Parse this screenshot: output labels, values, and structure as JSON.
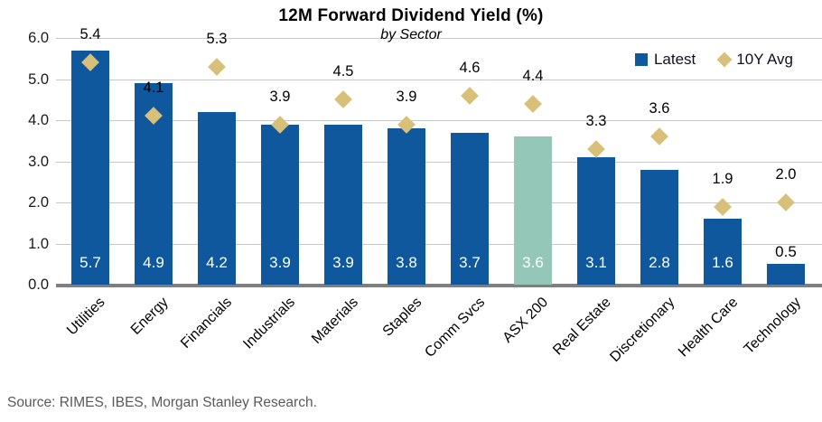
{
  "title": "12M Forward Dividend Yield (%)",
  "subtitle": "by Sector",
  "legend": {
    "latest": "Latest",
    "avg": "10Y Avg"
  },
  "source": "Source: RIMES, IBES, Morgan Stanley Research.",
  "colors": {
    "bar": "#10589E",
    "highlight_bar": "#95C7B8",
    "diamond": "#D8C078",
    "gridline": "#C8C8C8",
    "baseline": "#7F7F7F"
  },
  "chart_data": {
    "type": "bar",
    "title": "12M Forward Dividend Yield (%)",
    "subtitle": "by Sector",
    "categories": [
      "Utilities",
      "Energy",
      "Financials",
      "Industrials",
      "Materials",
      "Staples",
      "Comm Svcs",
      "ASX 200",
      "Real Estate",
      "Discretionary",
      "Health Care",
      "Technology"
    ],
    "series": [
      {
        "name": "Latest",
        "type": "bar",
        "values": [
          5.7,
          4.9,
          4.2,
          3.9,
          3.9,
          3.8,
          3.7,
          3.6,
          3.1,
          2.8,
          1.6,
          0.5
        ]
      },
      {
        "name": "10Y Avg",
        "type": "scatter-diamond",
        "values": [
          5.4,
          4.1,
          5.3,
          3.9,
          4.5,
          3.9,
          4.6,
          4.4,
          3.3,
          3.6,
          1.9,
          2.0
        ]
      }
    ],
    "highlight_category": "ASX 200",
    "ylim": [
      0,
      6
    ],
    "ytick_step": 1,
    "ytick_labels": [
      "0.0",
      "1.0",
      "2.0",
      "3.0",
      "4.0",
      "5.0",
      "6.0"
    ],
    "grid": true,
    "legend_position": "top-right"
  }
}
